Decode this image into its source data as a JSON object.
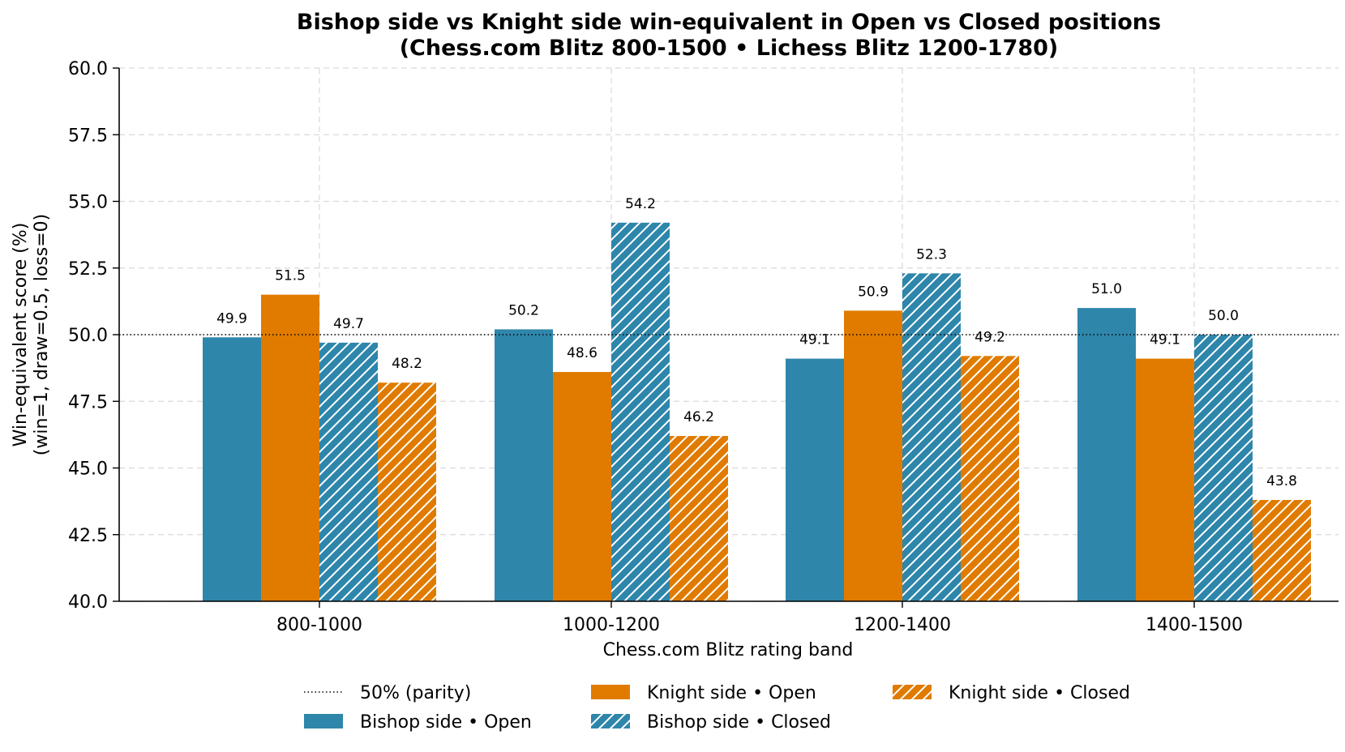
{
  "chart_data": {
    "type": "bar",
    "title": "Bishop side vs Knight side win-equivalent in Open vs Closed positions",
    "subtitle": "(Chess.com Blitz 800-1500 • Lichess Blitz 1200-1780)",
    "xlabel": "Chess.com Blitz rating band",
    "ylabel_line1": "Win-equivalent score (%)",
    "ylabel_line2": "(win=1, draw=0.5, loss=0)",
    "ylim": [
      40.0,
      60.0
    ],
    "yticks": [
      "40.0",
      "42.5",
      "45.0",
      "47.5",
      "50.0",
      "52.5",
      "55.0",
      "57.5",
      "60.0"
    ],
    "ytick_values": [
      40.0,
      42.5,
      45.0,
      47.5,
      50.0,
      52.5,
      55.0,
      57.5,
      60.0
    ],
    "grid": true,
    "legend_position": "bottom-center",
    "categories": [
      "800-1000",
      "1000-1200",
      "1200-1400",
      "1400-1500"
    ],
    "reference_line": {
      "name": "50% (parity)",
      "value": 50.0,
      "style": "dotted"
    },
    "series": [
      {
        "name": "Bishop side • Open",
        "values": [
          49.9,
          50.2,
          49.1,
          51.0
        ],
        "labels": [
          "49.9",
          "50.2",
          "49.1",
          "51.0"
        ],
        "color": "#2e86ab",
        "hatched": false
      },
      {
        "name": "Knight side • Open",
        "values": [
          51.5,
          48.6,
          50.9,
          49.1
        ],
        "labels": [
          "51.5",
          "48.6",
          "50.9",
          "49.1"
        ],
        "color": "#e07b00",
        "hatched": false
      },
      {
        "name": "Bishop side • Closed",
        "values": [
          49.7,
          54.2,
          52.3,
          50.0
        ],
        "labels": [
          "49.7",
          "54.2",
          "52.3",
          "50.0"
        ],
        "color": "#2e86ab",
        "hatched": true
      },
      {
        "name": "Knight side • Closed",
        "values": [
          48.2,
          46.2,
          49.2,
          43.8
        ],
        "labels": [
          "48.2",
          "46.2",
          "49.2",
          "43.8"
        ],
        "color": "#e07b00",
        "hatched": true
      }
    ]
  }
}
